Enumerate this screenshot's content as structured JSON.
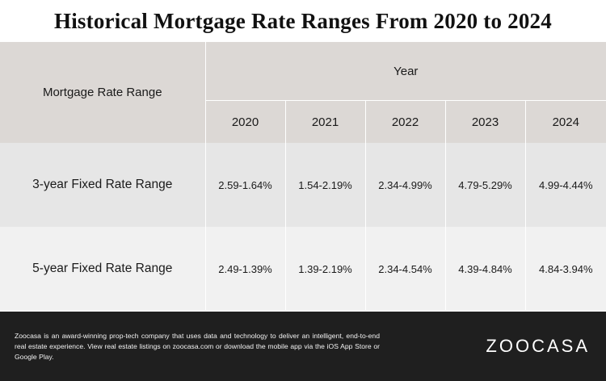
{
  "title": "Historical Mortgage Rate Ranges From 2020 to 2024",
  "table": {
    "label_header": "Mortgage Rate Range",
    "group_header": "Year",
    "years": [
      "2020",
      "2021",
      "2022",
      "2023",
      "2024"
    ],
    "rows": [
      {
        "label": "3-year Fixed Rate Range",
        "values": [
          "2.59-1.64%",
          "1.54-2.19%",
          "2.34-4.99%",
          "4.79-5.29%",
          "4.99-4.44%"
        ]
      },
      {
        "label": "5-year Fixed Rate Range",
        "values": [
          "2.49-1.39%",
          "1.39-2.19%",
          "2.34-4.54%",
          "4.39-4.84%",
          "4.84-3.94%"
        ]
      }
    ]
  },
  "footer": {
    "text": "Zoocasa is an award-winning prop-tech company that uses data and technology to deliver an intelligent, end-to-end real estate experience. View real estate listings on zoocasa.com or download the mobile app via the iOS App Store or Google Play.",
    "logo": "ZOOCASA"
  },
  "colors": {
    "header_bg": "#dcd8d5",
    "row_a_bg": "#e6e6e6",
    "row_b_bg": "#f1f1f1",
    "footer_bg": "#1f1f1f"
  }
}
